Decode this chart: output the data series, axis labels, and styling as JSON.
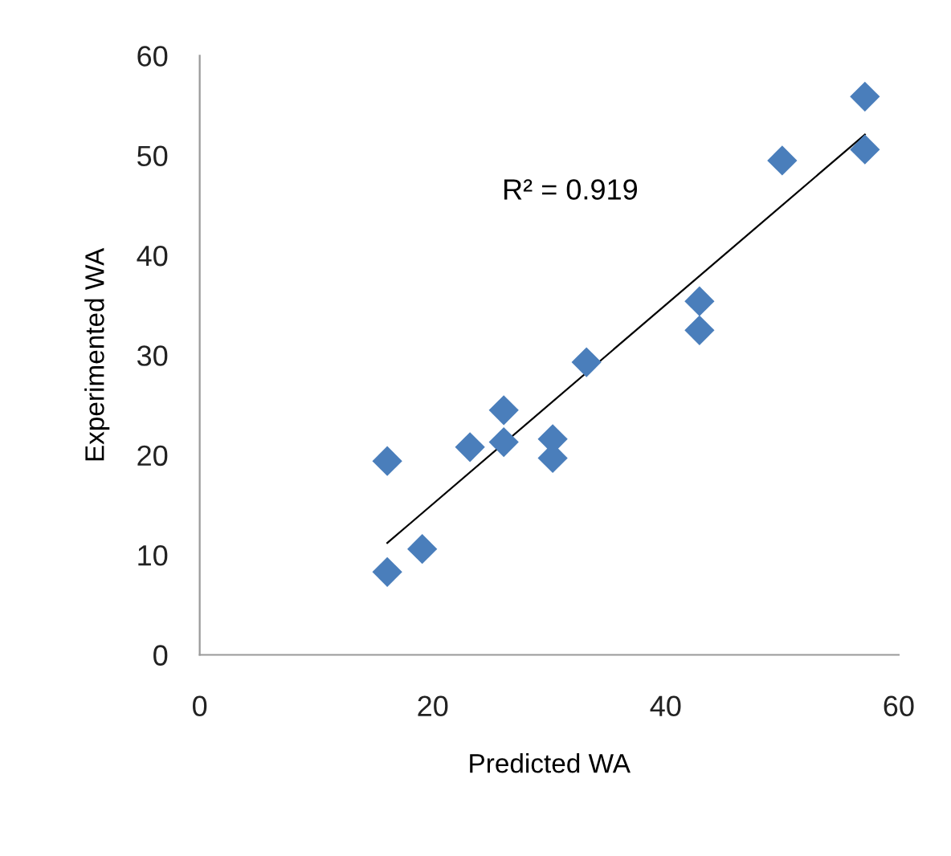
{
  "chart_data": {
    "type": "scatter",
    "xlabel": "Predicted WA",
    "ylabel": "Experimented WA",
    "grid": false,
    "legend": false,
    "xlim": [
      0,
      60
    ],
    "ylim": [
      0,
      60
    ],
    "xticks": [
      0,
      20,
      40,
      60
    ],
    "yticks": [
      0,
      10,
      20,
      30,
      40,
      50,
      60
    ],
    "annotations": [
      "R² = 0.919"
    ],
    "series": [
      {
        "marker": "diamond",
        "color": "#4a7ebb",
        "x": [
          16.1,
          16.1,
          19.1,
          23.2,
          26.1,
          26.1,
          30.3,
          30.3,
          33.2,
          42.9,
          42.9,
          50.0,
          57.1,
          57.1
        ],
        "values": [
          8.3,
          19.4,
          10.6,
          20.8,
          24.5,
          21.3,
          21.6,
          19.7,
          29.3,
          35.4,
          32.5,
          49.5,
          55.9,
          50.6
        ]
      },
      {
        "type": "line",
        "marker": "none",
        "color": "#000000",
        "x": [
          16.1,
          57.1
        ],
        "values": [
          11.2,
          52.1
        ]
      }
    ]
  }
}
